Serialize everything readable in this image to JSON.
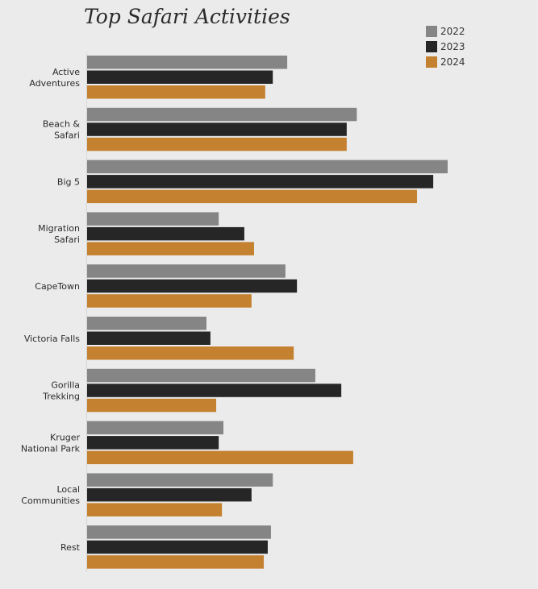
{
  "chart_data": {
    "type": "bar",
    "orientation": "horizontal",
    "title": "Top Safari Activities",
    "xlabel": "",
    "ylabel": "",
    "grid": false,
    "legend_position": "top-right",
    "xlim": [
      0,
      100
    ],
    "categories": [
      [
        "Active",
        "Adventures"
      ],
      [
        "Beach &",
        "Safari"
      ],
      [
        "Big 5"
      ],
      [
        "Migration",
        "Safari"
      ],
      [
        "CapeTown"
      ],
      [
        "Victoria Falls"
      ],
      [
        "Gorilla",
        "Trekking"
      ],
      [
        "Kruger",
        "National Park"
      ],
      [
        "Local",
        "Communities"
      ],
      [
        "Rest"
      ]
    ],
    "series": [
      {
        "name": "2022",
        "color": "#858585",
        "values": [
          55.5,
          74.8,
          100.0,
          36.5,
          55.0,
          33.1,
          63.3,
          37.8,
          51.5,
          51.0
        ]
      },
      {
        "name": "2023",
        "color": "#262626",
        "values": [
          51.5,
          72.0,
          96.0,
          43.6,
          58.2,
          34.2,
          70.5,
          36.5,
          45.6,
          50.1
        ]
      },
      {
        "name": "2024",
        "color": "#c4812f",
        "values": [
          49.4,
          72.0,
          91.5,
          46.3,
          45.6,
          57.3,
          35.8,
          73.8,
          37.4,
          49.0
        ]
      }
    ]
  }
}
